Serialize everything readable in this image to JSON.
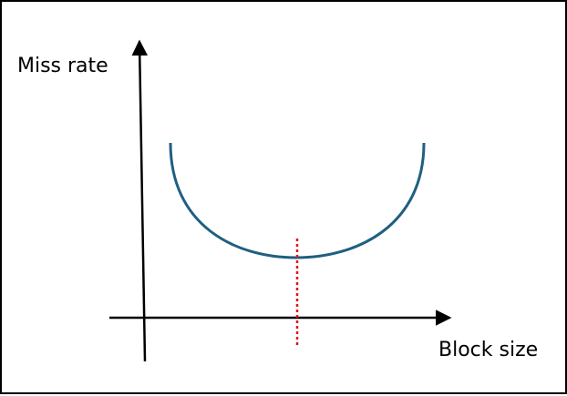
{
  "axes": {
    "y_label": "Miss rate",
    "x_label": "Block size"
  },
  "colors": {
    "frame": "#000000",
    "axis": "#000000",
    "curve": "#1f5f82",
    "marker": "#e0141e"
  }
}
